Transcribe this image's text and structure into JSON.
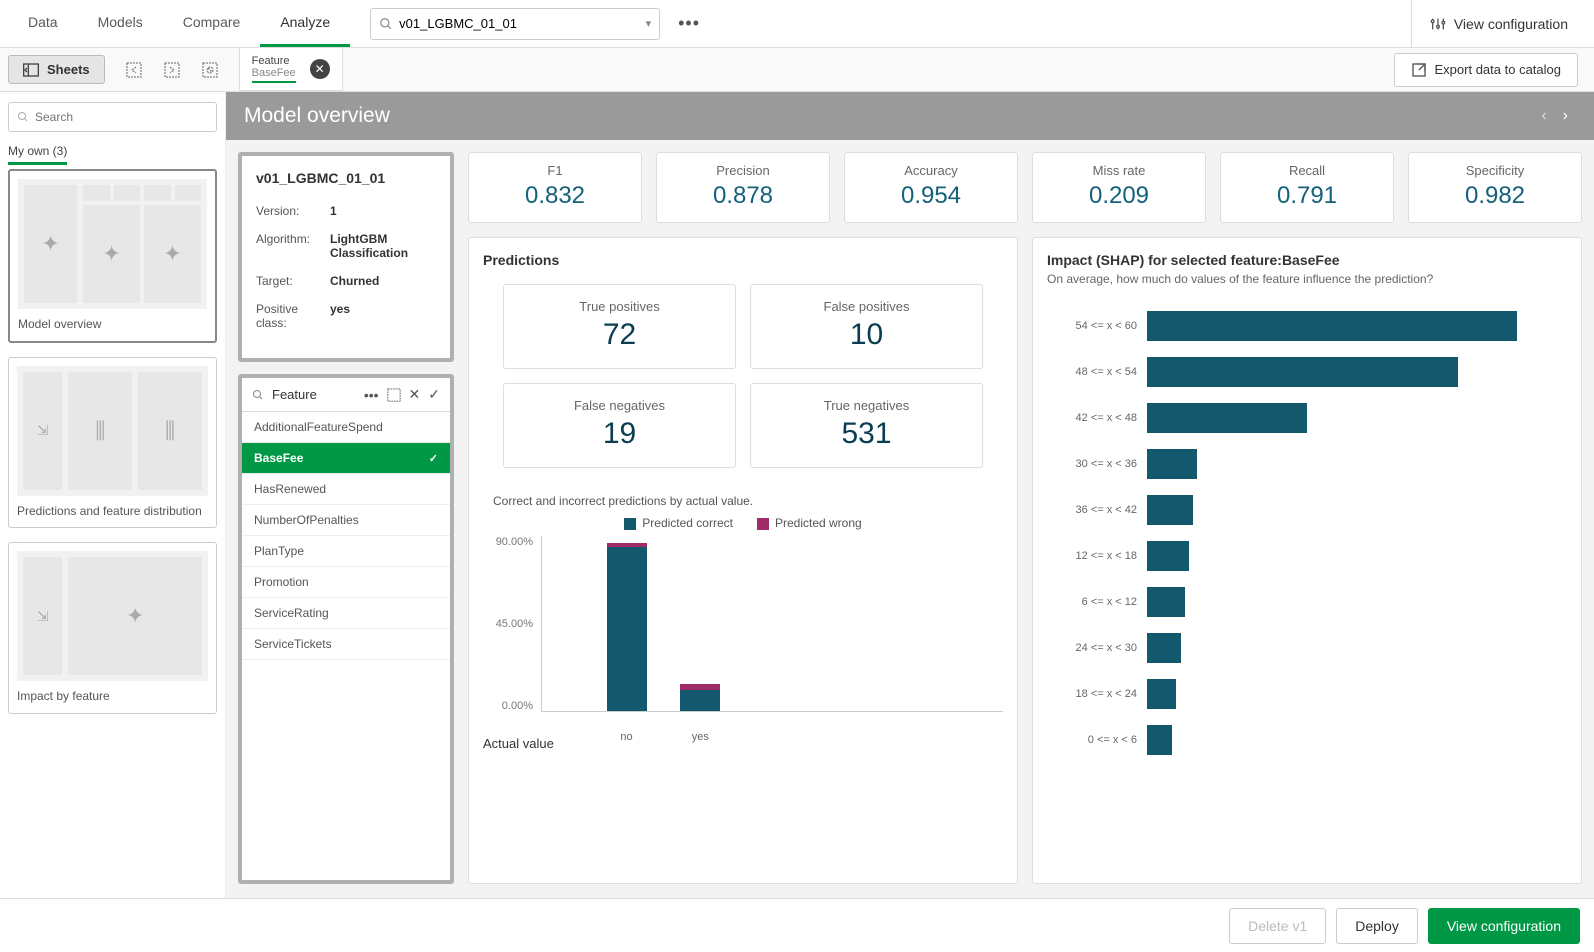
{
  "topnav": {
    "tabs": [
      "Data",
      "Models",
      "Compare",
      "Analyze"
    ],
    "active_tab": "Analyze",
    "search_value": "v01_LGBMC_01_01",
    "view_config_label": "View configuration"
  },
  "subbar": {
    "sheets_label": "Sheets",
    "feature_tab": {
      "label": "Feature",
      "value": "BaseFee"
    },
    "export_label": "Export data to catalog"
  },
  "sidebar": {
    "search_placeholder": "Search",
    "own_label": "My own (3)",
    "thumbs": [
      {
        "caption": "Model overview"
      },
      {
        "caption": "Predictions and feature distribution"
      },
      {
        "caption": "Impact by feature"
      }
    ]
  },
  "page_title": "Model overview",
  "model_card": {
    "title": "v01_LGBMC_01_01",
    "rows": [
      {
        "k": "Version:",
        "v": "1"
      },
      {
        "k": "Algorithm:",
        "v": "LightGBM Classification"
      },
      {
        "k": "Target:",
        "v": "Churned"
      },
      {
        "k": "Positive class:",
        "v": "yes"
      }
    ]
  },
  "feature_panel": {
    "title": "Feature",
    "items": [
      "AdditionalFeatureSpend",
      "BaseFee",
      "HasRenewed",
      "NumberOfPenalties",
      "PlanType",
      "Promotion",
      "ServiceRating",
      "ServiceTickets"
    ],
    "selected": "BaseFee"
  },
  "kpis": [
    {
      "label": "F1",
      "value": "0.832"
    },
    {
      "label": "Precision",
      "value": "0.878"
    },
    {
      "label": "Accuracy",
      "value": "0.954"
    },
    {
      "label": "Miss rate",
      "value": "0.209"
    },
    {
      "label": "Recall",
      "value": "0.791"
    },
    {
      "label": "Specificity",
      "value": "0.982"
    }
  ],
  "predictions": {
    "title": "Predictions",
    "confusion": [
      {
        "label": "True positives",
        "value": "72"
      },
      {
        "label": "False positives",
        "value": "10"
      },
      {
        "label": "False negatives",
        "value": "19"
      },
      {
        "label": "True negatives",
        "value": "531"
      }
    ],
    "chart_title": "Correct and incorrect predictions by actual value.",
    "legend": [
      {
        "label": "Predicted correct",
        "color": "#14586e"
      },
      {
        "label": "Predicted wrong",
        "color": "#9f2b68"
      }
    ],
    "yaxis": [
      "90.00%",
      "45.00%",
      "0.00%"
    ],
    "bars": [
      {
        "x": "no",
        "correct_pct": 84,
        "wrong_pct": 2,
        "left_pct": 14
      },
      {
        "x": "yes",
        "correct_pct": 11,
        "wrong_pct": 3,
        "left_pct": 30
      }
    ],
    "xaxis_title": "Actual value"
  },
  "shap": {
    "title": "Impact (SHAP) for selected feature:BaseFee",
    "subtitle": "On average, how much do values of the feature influence the prediction?",
    "bar_color": "#14586e",
    "rows": [
      {
        "label": "54 <= x < 60",
        "pct": 88
      },
      {
        "label": "48 <= x < 54",
        "pct": 74
      },
      {
        "label": "42 <= x < 48",
        "pct": 38
      },
      {
        "label": "30 <= x < 36",
        "pct": 12
      },
      {
        "label": "36 <= x < 42",
        "pct": 11
      },
      {
        "label": "12 <= x < 18",
        "pct": 10
      },
      {
        "label": "6 <= x < 12",
        "pct": 9
      },
      {
        "label": "24 <= x < 30",
        "pct": 8
      },
      {
        "label": "18 <= x < 24",
        "pct": 7
      },
      {
        "label": "0 <= x < 6",
        "pct": 6
      }
    ]
  },
  "footer": {
    "delete_label": "Delete v1",
    "deploy_label": "Deploy",
    "view_config_label": "View configuration"
  },
  "colors": {
    "accent_green": "#009845",
    "kpi_value": "#15607a",
    "conf_value": "#0a3c52"
  }
}
